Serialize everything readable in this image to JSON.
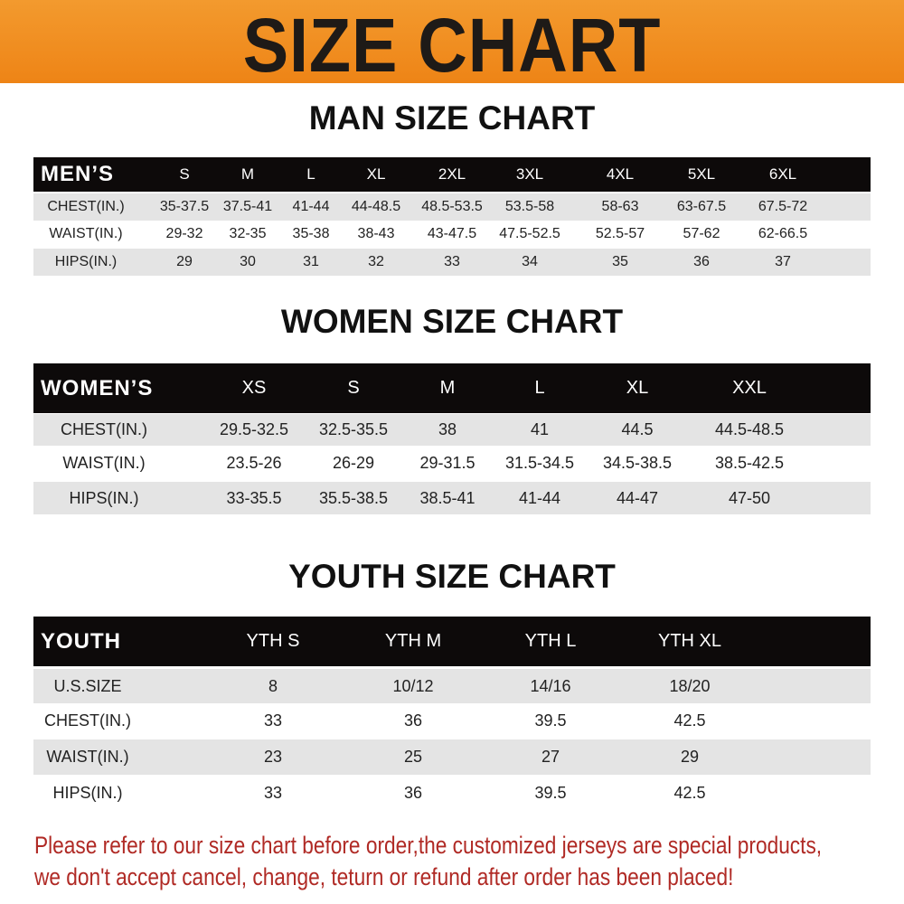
{
  "banner_title": "SIZE CHART",
  "men": {
    "title": "MAN SIZE CHART",
    "header": [
      "MEN’S",
      "S",
      "M",
      "L",
      "XL",
      "2XL",
      "3XL",
      "4XL",
      "5XL",
      "6XL"
    ],
    "rows": [
      [
        "CHEST(IN.)",
        "35-37.5",
        "37.5-41",
        "41-44",
        "44-48.5",
        "48.5-53.5",
        "53.5-58",
        "58-63",
        "63-67.5",
        "67.5-72"
      ],
      [
        "WAIST(IN.)",
        "29-32",
        "32-35",
        "35-38",
        "38-43",
        "43-47.5",
        "47.5-52.5",
        "52.5-57",
        "57-62",
        "62-66.5"
      ],
      [
        "HIPS(IN.)",
        "29",
        "30",
        "31",
        "32",
        "33",
        "34",
        "35",
        "36",
        "37"
      ]
    ]
  },
  "women": {
    "title": "WOMEN SIZE CHART",
    "header": [
      "WOMEN’S",
      "XS",
      "S",
      "M",
      "L",
      "XL",
      "XXL"
    ],
    "rows": [
      [
        "CHEST(IN.)",
        "29.5-32.5",
        "32.5-35.5",
        "38",
        "41",
        "44.5",
        "44.5-48.5"
      ],
      [
        "WAIST(IN.)",
        "23.5-26",
        "26-29",
        "29-31.5",
        "31.5-34.5",
        "34.5-38.5",
        "38.5-42.5"
      ],
      [
        "HIPS(IN.)",
        "33-35.5",
        "35.5-38.5",
        "38.5-41",
        "41-44",
        "44-47",
        "47-50"
      ]
    ]
  },
  "youth": {
    "title": "YOUTH SIZE CHART",
    "header": [
      "YOUTH",
      "YTH S",
      "YTH M",
      "YTH L",
      "YTH XL"
    ],
    "rows": [
      [
        "U.S.SIZE",
        "8",
        "10/12",
        "14/16",
        "18/20"
      ],
      [
        "CHEST(IN.)",
        "33",
        "36",
        "39.5",
        "42.5"
      ],
      [
        "WAIST(IN.)",
        "23",
        "25",
        "27",
        "29"
      ],
      [
        "HIPS(IN.)",
        "33",
        "36",
        "39.5",
        "42.5"
      ]
    ]
  },
  "footer": {
    "line1": "Please refer to our size chart before order,the customized jerseys are special products,",
    "line2": "we don't accept cancel, change, teturn or refund after order has been placed!"
  },
  "colors": {
    "banner": "#ee8416",
    "header_row": "#0d0a0a",
    "stripe": "#e4e4e4",
    "notice": "#b02a25"
  }
}
